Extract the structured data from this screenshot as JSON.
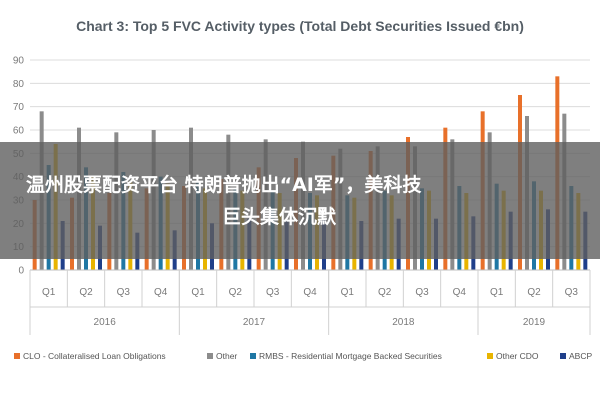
{
  "chart_data": {
    "type": "bar",
    "title": "Chart 3: Top 5 FVC Activity types (Total Debt Securities Issued €bn)",
    "xlabel": "",
    "ylabel": "",
    "ylim": [
      0,
      90
    ],
    "yticks": [
      0,
      10,
      20,
      30,
      40,
      50,
      60,
      70,
      80,
      90
    ],
    "grid": true,
    "legend_position": "bottom",
    "categories": [
      "Q1",
      "Q2",
      "Q3",
      "Q4",
      "Q1",
      "Q2",
      "Q3",
      "Q4",
      "Q1",
      "Q2",
      "Q3",
      "Q4",
      "Q1",
      "Q2",
      "Q3"
    ],
    "groups": [
      {
        "label": "2016",
        "count": 4
      },
      {
        "label": "2017",
        "count": 4
      },
      {
        "label": "2018",
        "count": 4
      },
      {
        "label": "2019",
        "count": 3
      }
    ],
    "series": [
      {
        "name": "CLO - Collateralised Loan Obligations",
        "color": "#e8702a",
        "values": [
          30,
          31,
          33,
          35,
          36,
          39,
          44,
          48,
          49,
          51,
          57,
          61,
          68,
          75,
          83
        ]
      },
      {
        "name": "Other",
        "color": "#8c8c8c",
        "values": [
          68,
          61,
          59,
          60,
          61,
          58,
          56,
          55,
          52,
          53,
          53,
          56,
          59,
          66,
          67
        ]
      },
      {
        "name": "RMBS - Residential Mortgage Backed Securities",
        "color": "#1f77a4",
        "values": [
          45,
          44,
          42,
          40,
          38,
          35,
          34,
          33,
          32,
          34,
          35,
          36,
          37,
          38,
          36
        ]
      },
      {
        "name": "Other CDO",
        "color": "#e8b400",
        "values": [
          54,
          40,
          38,
          37,
          35,
          34,
          33,
          32,
          31,
          32,
          34,
          33,
          34,
          34,
          33
        ]
      },
      {
        "name": "ABCP",
        "color": "#1f3f8a",
        "values": [
          21,
          19,
          16,
          17,
          20,
          22,
          21,
          22,
          21,
          22,
          22,
          23,
          25,
          26,
          25
        ]
      }
    ]
  },
  "overlay": {
    "line1": "温州股票配资平台 特朗普抛出“AI军”，美科技",
    "line2": "巨头集体沉默"
  }
}
